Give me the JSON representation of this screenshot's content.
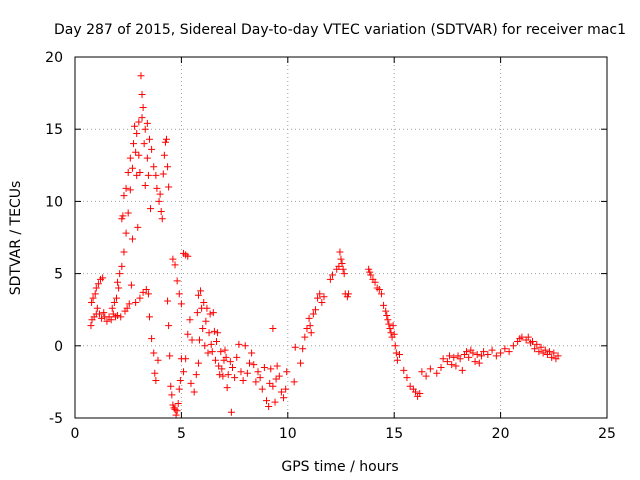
{
  "chart_data": {
    "type": "scatter",
    "title": "Day 287 of 2015, Sidereal Day-to-day VTEC variation (SDTVAR) for receiver mac1",
    "xlabel": "GPS time / hours",
    "ylabel": "SDTVAR / TECUs",
    "xlim": [
      0,
      25
    ],
    "ylim": [
      -5,
      20
    ],
    "xticks": [
      0,
      5,
      10,
      15,
      20,
      25
    ],
    "yticks": [
      -5,
      0,
      5,
      10,
      15,
      20
    ],
    "xtick_labels": [
      "0",
      "5",
      "10",
      "15",
      "20",
      "25"
    ],
    "ytick_labels": [
      "-5",
      "0",
      "5",
      "10",
      "15",
      "20"
    ],
    "grid": true,
    "marker": "plus",
    "color": "#ff0000",
    "series": [
      {
        "name": "SDTVAR",
        "points": [
          [
            0.75,
            1.4
          ],
          [
            0.78,
            3.0
          ],
          [
            0.8,
            1.8
          ],
          [
            0.85,
            3.3
          ],
          [
            0.9,
            2.0
          ],
          [
            0.95,
            3.6
          ],
          [
            1.0,
            2.2
          ],
          [
            1.0,
            4.0
          ],
          [
            1.05,
            2.6
          ],
          [
            1.1,
            4.3
          ],
          [
            1.15,
            2.2
          ],
          [
            1.2,
            4.6
          ],
          [
            1.25,
            1.9
          ],
          [
            1.3,
            4.7
          ],
          [
            1.35,
            2.3
          ],
          [
            1.4,
            2.0
          ],
          [
            1.5,
            1.7
          ],
          [
            1.6,
            2.0
          ],
          [
            1.7,
            1.8
          ],
          [
            1.75,
            2.6
          ],
          [
            1.8,
            2.2
          ],
          [
            1.85,
            3.0
          ],
          [
            1.9,
            2.0
          ],
          [
            1.95,
            3.3
          ],
          [
            2.0,
            2.1
          ],
          [
            2.0,
            4.4
          ],
          [
            2.05,
            4.0
          ],
          [
            2.1,
            5.0
          ],
          [
            2.15,
            2.0
          ],
          [
            2.2,
            5.5
          ],
          [
            2.2,
            8.8
          ],
          [
            2.25,
            9.0
          ],
          [
            2.3,
            6.5
          ],
          [
            2.3,
            10.4
          ],
          [
            2.35,
            2.4
          ],
          [
            2.4,
            7.8
          ],
          [
            2.4,
            10.9
          ],
          [
            2.45,
            2.6
          ],
          [
            2.5,
            9.2
          ],
          [
            2.5,
            12.0
          ],
          [
            2.55,
            2.9
          ],
          [
            2.6,
            10.8
          ],
          [
            2.6,
            13.0
          ],
          [
            2.65,
            4.2
          ],
          [
            2.7,
            7.4
          ],
          [
            2.7,
            12.3
          ],
          [
            2.75,
            14.0
          ],
          [
            2.8,
            15.2
          ],
          [
            2.85,
            3.0
          ],
          [
            2.85,
            13.4
          ],
          [
            2.9,
            11.8
          ],
          [
            2.9,
            14.7
          ],
          [
            2.95,
            8.2
          ],
          [
            3.0,
            15.5
          ],
          [
            3.0,
            13.2
          ],
          [
            3.05,
            3.3
          ],
          [
            3.05,
            12.0
          ],
          [
            3.1,
            18.7
          ],
          [
            3.15,
            17.4
          ],
          [
            3.15,
            15.8
          ],
          [
            3.2,
            16.5
          ],
          [
            3.2,
            3.7
          ],
          [
            3.25,
            14.0
          ],
          [
            3.3,
            11.1
          ],
          [
            3.3,
            15.0
          ],
          [
            3.35,
            3.9
          ],
          [
            3.4,
            15.4
          ],
          [
            3.4,
            13.0
          ],
          [
            3.45,
            3.6
          ],
          [
            3.45,
            11.8
          ],
          [
            3.5,
            14.3
          ],
          [
            3.5,
            2.0
          ],
          [
            3.55,
            9.5
          ],
          [
            3.6,
            0.5
          ],
          [
            3.6,
            13.6
          ],
          [
            3.7,
            12.4
          ],
          [
            3.7,
            -0.5
          ],
          [
            3.75,
            -1.9
          ],
          [
            3.8,
            11.8
          ],
          [
            3.8,
            -2.4
          ],
          [
            3.85,
            10.9
          ],
          [
            3.9,
            -1.0
          ],
          [
            3.95,
            10.0
          ],
          [
            4.0,
            10.5
          ],
          [
            4.05,
            9.3
          ],
          [
            4.1,
            8.8
          ],
          [
            4.15,
            11.9
          ],
          [
            4.2,
            13.2
          ],
          [
            4.25,
            14.1
          ],
          [
            4.3,
            14.3
          ],
          [
            4.35,
            12.4
          ],
          [
            4.4,
            11.0
          ],
          [
            4.35,
            3.1
          ],
          [
            4.4,
            1.4
          ],
          [
            4.45,
            -0.7
          ],
          [
            4.5,
            -2.8
          ],
          [
            4.55,
            -3.4
          ],
          [
            4.6,
            -4.1
          ],
          [
            4.65,
            -4.3
          ],
          [
            4.7,
            -4.4
          ],
          [
            4.75,
            -4.8
          ],
          [
            4.8,
            -4.5
          ],
          [
            4.85,
            -4.0
          ],
          [
            4.9,
            -3.0
          ],
          [
            4.95,
            -2.4
          ],
          [
            4.6,
            6.0
          ],
          [
            4.7,
            5.6
          ],
          [
            4.8,
            4.5
          ],
          [
            4.9,
            3.6
          ],
          [
            5.0,
            -0.9
          ],
          [
            5.0,
            2.9
          ],
          [
            5.1,
            -1.8
          ],
          [
            5.1,
            6.4
          ],
          [
            5.2,
            6.3
          ],
          [
            5.2,
            -0.9
          ],
          [
            5.3,
            6.2
          ],
          [
            5.3,
            0.8
          ],
          [
            5.4,
            1.8
          ],
          [
            5.5,
            0.4
          ],
          [
            5.45,
            -2.6
          ],
          [
            5.6,
            -3.2
          ],
          [
            5.7,
            -2.0
          ],
          [
            5.75,
            2.3
          ],
          [
            5.8,
            3.5
          ],
          [
            5.8,
            -1.2
          ],
          [
            5.85,
            0.4
          ],
          [
            5.9,
            3.8
          ],
          [
            5.95,
            2.6
          ],
          [
            6.0,
            1.2
          ],
          [
            6.05,
            3.0
          ],
          [
            6.1,
            0.0
          ],
          [
            6.15,
            1.7
          ],
          [
            6.2,
            2.6
          ],
          [
            6.25,
            -0.5
          ],
          [
            6.3,
            0.9
          ],
          [
            6.35,
            2.2
          ],
          [
            6.4,
            0.1
          ],
          [
            6.45,
            -0.4
          ],
          [
            6.5,
            2.3
          ],
          [
            6.55,
            1.0
          ],
          [
            6.6,
            -1.0
          ],
          [
            6.65,
            0.3
          ],
          [
            6.7,
            0.9
          ],
          [
            6.75,
            -1.4
          ],
          [
            6.8,
            -2.0
          ],
          [
            6.85,
            -0.4
          ],
          [
            6.9,
            -1.6
          ],
          [
            6.95,
            -2.1
          ],
          [
            7.0,
            -1.0
          ],
          [
            7.05,
            -0.3
          ],
          [
            7.1,
            -0.8
          ],
          [
            7.15,
            -2.9
          ],
          [
            7.2,
            -2.0
          ],
          [
            7.3,
            -1.1
          ],
          [
            7.35,
            -4.6
          ],
          [
            7.4,
            -1.5
          ],
          [
            7.5,
            -2.2
          ],
          [
            7.6,
            -0.8
          ],
          [
            7.7,
            0.1
          ],
          [
            7.8,
            -1.8
          ],
          [
            7.9,
            -2.4
          ],
          [
            8.0,
            0.0
          ],
          [
            8.1,
            -1.9
          ],
          [
            8.2,
            -1.2
          ],
          [
            8.3,
            -0.5
          ],
          [
            8.4,
            -1.3
          ],
          [
            8.5,
            -2.5
          ],
          [
            8.6,
            -1.8
          ],
          [
            8.7,
            -2.2
          ],
          [
            8.8,
            -3.0
          ],
          [
            8.9,
            -1.5
          ],
          [
            9.0,
            -3.8
          ],
          [
            9.1,
            -4.2
          ],
          [
            9.15,
            -2.6
          ],
          [
            9.2,
            -1.6
          ],
          [
            9.3,
            -2.8
          ],
          [
            9.3,
            1.2
          ],
          [
            9.4,
            -3.9
          ],
          [
            9.45,
            -2.3
          ],
          [
            9.5,
            -1.4
          ],
          [
            9.6,
            -2.1
          ],
          [
            9.7,
            -3.2
          ],
          [
            9.8,
            -3.6
          ],
          [
            9.9,
            -3.0
          ],
          [
            9.95,
            -1.8
          ],
          [
            10.3,
            -2.5
          ],
          [
            10.35,
            -0.1
          ],
          [
            10.6,
            -1.2
          ],
          [
            10.7,
            -0.2
          ],
          [
            10.8,
            0.6
          ],
          [
            10.9,
            1.2
          ],
          [
            11.0,
            1.9
          ],
          [
            11.05,
            1.4
          ],
          [
            11.1,
            0.9
          ],
          [
            11.2,
            2.2
          ],
          [
            11.3,
            2.5
          ],
          [
            11.4,
            3.3
          ],
          [
            11.5,
            3.6
          ],
          [
            11.6,
            3.0
          ],
          [
            11.7,
            3.4
          ],
          [
            12.0,
            4.6
          ],
          [
            12.1,
            4.9
          ],
          [
            12.3,
            5.3
          ],
          [
            12.4,
            5.5
          ],
          [
            12.45,
            6.5
          ],
          [
            12.5,
            6.0
          ],
          [
            12.55,
            5.7
          ],
          [
            12.6,
            5.3
          ],
          [
            12.65,
            5.0
          ],
          [
            12.7,
            3.6
          ],
          [
            12.8,
            3.4
          ],
          [
            12.85,
            3.6
          ],
          [
            13.8,
            5.3
          ],
          [
            13.85,
            5.1
          ],
          [
            13.9,
            4.9
          ],
          [
            14.0,
            4.6
          ],
          [
            14.1,
            4.4
          ],
          [
            14.2,
            4.0
          ],
          [
            14.3,
            3.9
          ],
          [
            14.4,
            3.6
          ],
          [
            14.5,
            2.8
          ],
          [
            14.6,
            2.4
          ],
          [
            14.65,
            2.1
          ],
          [
            14.7,
            1.8
          ],
          [
            14.75,
            1.5
          ],
          [
            14.8,
            1.2
          ],
          [
            14.85,
            0.9
          ],
          [
            14.9,
            0.6
          ],
          [
            14.95,
            1.4
          ],
          [
            15.0,
            0.8
          ],
          [
            15.05,
            0.0
          ],
          [
            15.1,
            -0.5
          ],
          [
            15.15,
            -1.0
          ],
          [
            15.25,
            -0.6
          ],
          [
            15.45,
            -1.7
          ],
          [
            15.6,
            -2.2
          ],
          [
            15.75,
            -2.8
          ],
          [
            15.9,
            -3.0
          ],
          [
            16.0,
            -3.2
          ],
          [
            16.1,
            -3.5
          ],
          [
            16.2,
            -3.3
          ],
          [
            16.3,
            -1.8
          ],
          [
            16.5,
            -2.1
          ],
          [
            16.7,
            -1.6
          ],
          [
            17.0,
            -1.9
          ],
          [
            17.2,
            -1.5
          ],
          [
            17.3,
            -0.9
          ],
          [
            17.5,
            -1.1
          ],
          [
            17.6,
            -0.7
          ],
          [
            17.7,
            -1.3
          ],
          [
            17.8,
            -0.8
          ],
          [
            17.9,
            -1.4
          ],
          [
            18.0,
            -0.7
          ],
          [
            18.1,
            -0.9
          ],
          [
            18.2,
            -1.7
          ],
          [
            18.3,
            -0.6
          ],
          [
            18.4,
            -0.4
          ],
          [
            18.5,
            -0.8
          ],
          [
            18.6,
            -0.3
          ],
          [
            18.7,
            -0.5
          ],
          [
            18.8,
            -1.1
          ],
          [
            18.9,
            -0.6
          ],
          [
            19.0,
            -1.2
          ],
          [
            19.1,
            -0.7
          ],
          [
            19.2,
            -0.4
          ],
          [
            19.4,
            -0.6
          ],
          [
            19.6,
            -0.3
          ],
          [
            19.8,
            -0.7
          ],
          [
            20.0,
            -0.5
          ],
          [
            20.2,
            -0.2
          ],
          [
            20.4,
            -0.4
          ],
          [
            20.6,
            0.0
          ],
          [
            20.8,
            0.3
          ],
          [
            20.9,
            0.5
          ],
          [
            21.0,
            0.6
          ],
          [
            21.2,
            0.4
          ],
          [
            21.3,
            0.6
          ],
          [
            21.4,
            0.2
          ],
          [
            21.5,
            0.3
          ],
          [
            21.6,
            -0.2
          ],
          [
            21.7,
            0.1
          ],
          [
            21.8,
            -0.4
          ],
          [
            21.9,
            -0.1
          ],
          [
            22.0,
            -0.5
          ],
          [
            22.1,
            -0.3
          ],
          [
            22.2,
            -0.6
          ],
          [
            22.3,
            -0.4
          ],
          [
            22.4,
            -0.8
          ],
          [
            22.5,
            -0.5
          ],
          [
            22.6,
            -0.9
          ],
          [
            22.7,
            -0.7
          ]
        ]
      }
    ]
  }
}
